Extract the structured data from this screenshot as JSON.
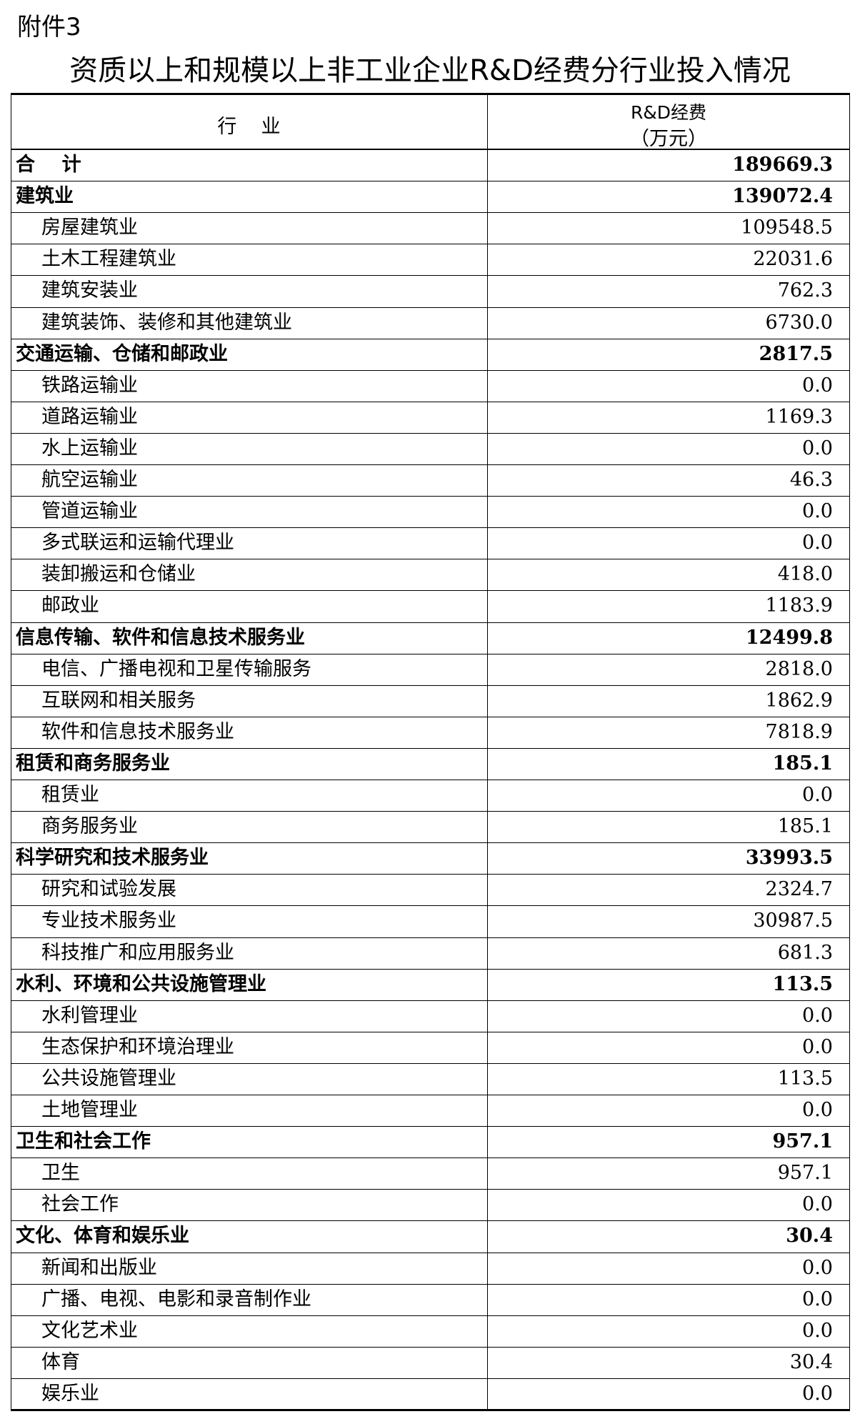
{
  "header": {
    "attachment": "附件3",
    "title": "资质以上和规模以上非工业企业R&D经费分行业投入情况"
  },
  "table": {
    "columns": [
      "行    业",
      "R&D经费",
      "（万元）"
    ],
    "rows": [
      {
        "label": "合    计",
        "value": "189669.3",
        "bold": true
      },
      {
        "label": "建筑业",
        "value": "139072.4",
        "bold": true
      },
      {
        "label": "房屋建筑业",
        "value": "109548.5",
        "bold": false
      },
      {
        "label": "土木工程建筑业",
        "value": "22031.6",
        "bold": false
      },
      {
        "label": "建筑安装业",
        "value": "762.3",
        "bold": false
      },
      {
        "label": "建筑装饰、装修和其他建筑业",
        "value": "6730.0",
        "bold": false
      },
      {
        "label": "交通运输、仓储和邮政业",
        "value": "2817.5",
        "bold": true
      },
      {
        "label": "铁路运输业",
        "value": "0.0",
        "bold": false
      },
      {
        "label": "道路运输业",
        "value": "1169.3",
        "bold": false
      },
      {
        "label": "水上运输业",
        "value": "0.0",
        "bold": false
      },
      {
        "label": "航空运输业",
        "value": "46.3",
        "bold": false
      },
      {
        "label": "管道运输业",
        "value": "0.0",
        "bold": false
      },
      {
        "label": "多式联运和运输代理业",
        "value": "0.0",
        "bold": false
      },
      {
        "label": "装卸搬运和仓储业",
        "value": "418.0",
        "bold": false
      },
      {
        "label": "邮政业",
        "value": "1183.9",
        "bold": false
      },
      {
        "label": "信息传输、软件和信息技术服务业",
        "value": "12499.8",
        "bold": true
      },
      {
        "label": "电信、广播电视和卫星传输服务",
        "value": "2818.0",
        "bold": false
      },
      {
        "label": "互联网和相关服务",
        "value": "1862.9",
        "bold": false
      },
      {
        "label": "软件和信息技术服务业",
        "value": "7818.9",
        "bold": false
      },
      {
        "label": "租赁和商务服务业",
        "value": "185.1",
        "bold": true
      },
      {
        "label": "租赁业",
        "value": "0.0",
        "bold": false
      },
      {
        "label": "商务服务业",
        "value": "185.1",
        "bold": false
      },
      {
        "label": "科学研究和技术服务业",
        "value": "33993.5",
        "bold": true
      },
      {
        "label": "研究和试验发展",
        "value": "2324.7",
        "bold": false
      },
      {
        "label": "专业技术服务业",
        "value": "30987.5",
        "bold": false
      },
      {
        "label": "科技推广和应用服务业",
        "value": "681.3",
        "bold": false
      },
      {
        "label": "水利、环境和公共设施管理业",
        "value": "113.5",
        "bold": true
      },
      {
        "label": "水利管理业",
        "value": "0.0",
        "bold": false
      },
      {
        "label": "生态保护和环境治理业",
        "value": "0.0",
        "bold": false
      },
      {
        "label": "公共设施管理业",
        "value": "113.5",
        "bold": false
      },
      {
        "label": "土地管理业",
        "value": "0.0",
        "bold": false
      },
      {
        "label": "卫生和社会工作",
        "value": "957.1",
        "bold": true
      },
      {
        "label": "卫生",
        "value": "957.1",
        "bold": false
      },
      {
        "label": "社会工作",
        "value": "0.0",
        "bold": false
      },
      {
        "label": "文化、体育和娱乐业",
        "value": "30.4",
        "bold": true
      },
      {
        "label": "新闻和出版业",
        "value": "0.0",
        "bold": false
      },
      {
        "label": "广播、电视、电影和录音制作业",
        "value": "0.0",
        "bold": false
      },
      {
        "label": "文化艺术业",
        "value": "0.0",
        "bold": false
      },
      {
        "label": "体育",
        "value": "30.4",
        "bold": false
      },
      {
        "label": "娱乐业",
        "value": "0.0",
        "bold": false
      }
    ]
  }
}
